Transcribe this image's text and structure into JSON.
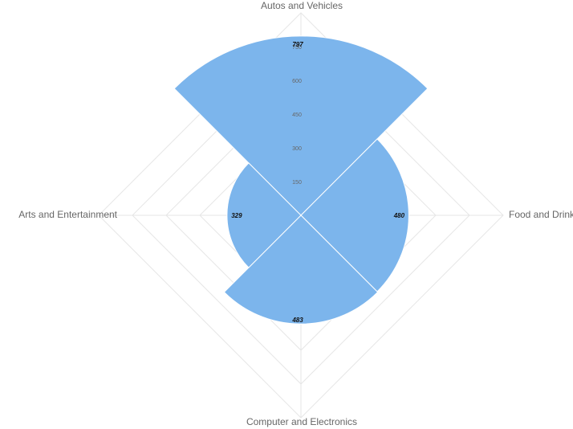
{
  "chart_data": {
    "type": "polar_area",
    "categories": [
      "Autos and Vehicles",
      "Food and Drink",
      "Computer and Electronics",
      "Arts and Entertainment"
    ],
    "values": [
      797,
      480,
      483,
      329
    ],
    "data_labels": [
      "797",
      "480",
      "483",
      "329"
    ],
    "r_ticks": [
      "150",
      "300",
      "450",
      "600",
      "750"
    ],
    "r_tick_values": [
      150,
      300,
      450,
      600,
      750
    ],
    "rmax": 900,
    "grid": true,
    "fill_color": "#7cb5ec",
    "grid_color": "#e6e6e6"
  }
}
